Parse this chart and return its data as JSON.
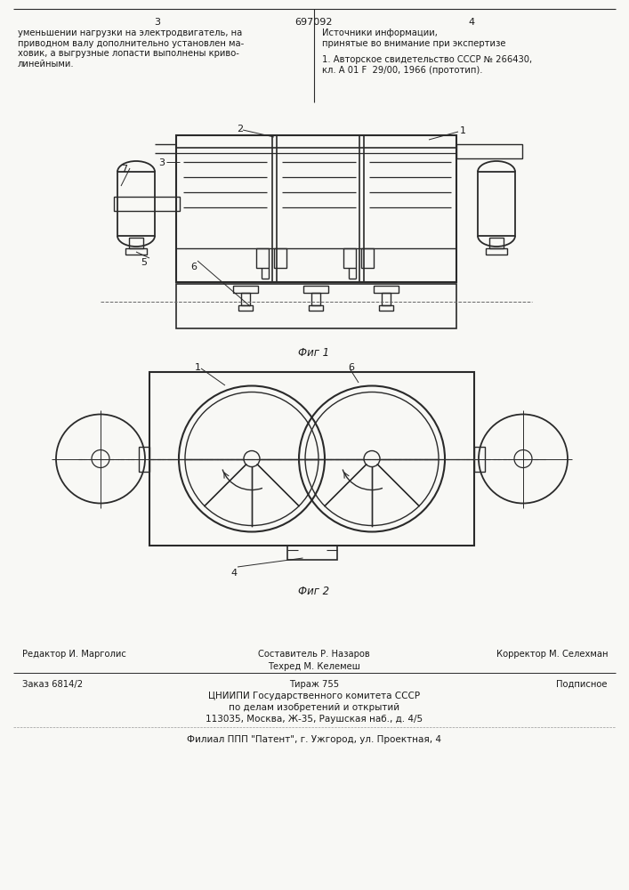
{
  "page_bg": "#f8f8f5",
  "fig_width": 7.07,
  "fig_height": 10.0,
  "dpi": 100,
  "header_number": "697092",
  "col3_label": "3",
  "col4_label": "4",
  "col3_text": "уменьшении нагрузки на электродвигатель, на\nприводном валу дополнительно установлен ма-\nховик, а выгрузные лопасти выполнены криво-\nлинейными.",
  "col4_text_title": "Источники информации,\nпринятые во внимание при экспертизе",
  "col4_text_body": "1. Авторское свидетельство СССР № 266430,\nкл. А 01 F  29/00, 1966 (прототип).",
  "fig1_caption": "Фиг 1",
  "fig2_caption": "Фиг 2",
  "footer_col1_row1": "Редактор И. Марголис",
  "footer_col2_row1": "Составитель Р. Назаров",
  "footer_col2_row2": "Техред М. Келемеш",
  "footer_col3_row1": "Корректор М. Селехман",
  "footer_row2_left": "Заказ 6814/2",
  "footer_row2_center": "Тираж 755",
  "footer_row2_right": "Подписное",
  "footer_cniipи1": "ЦНИИПИ Государственного комитета СССР",
  "footer_cniipи2": "по делам изобретений и открытий",
  "footer_cniipи3": "113035, Москва, Ж-35, Раушская наб., д. 4/5",
  "footer_filial": "Филиал ППП \"Патент\", г. Ужгород, ул. Проектная, 4",
  "line_color": "#2a2a2a",
  "text_color": "#1a1a1a"
}
